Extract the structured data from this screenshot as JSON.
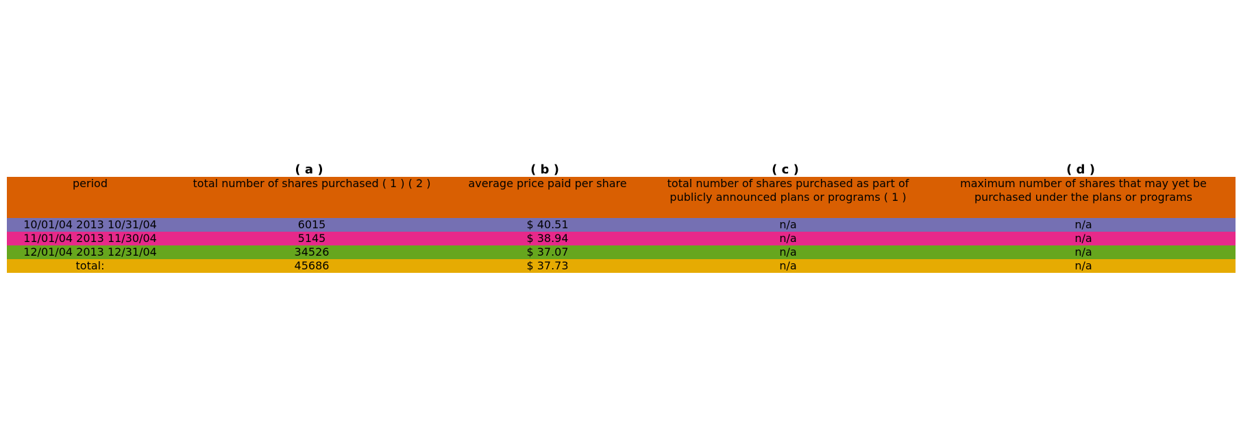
{
  "chart_data": {
    "type": "table",
    "column_letters": [
      "",
      "( a )",
      "( b )",
      "( c )",
      "( d )"
    ],
    "columns": [
      "period",
      "total number of shares purchased ( 1 ) ( 2 )",
      "average price paid per share",
      "total number of shares purchased as part of publicly announced plans or programs ( 1 )",
      "maximum number of shares that may yet be purchased under the plans or programs"
    ],
    "rows": [
      [
        "10/01/04 2013 10/31/04",
        "6015",
        "$ 40.51",
        "n/a",
        "n/a"
      ],
      [
        "11/01/04 2013 11/30/04",
        "5145",
        "$ 38.94",
        "n/a",
        "n/a"
      ],
      [
        "12/01/04 2013 12/31/04",
        "34526",
        "$ 37.07",
        "n/a",
        "n/a"
      ],
      [
        "total:",
        "45686",
        "$ 37.73",
        "n/a",
        "n/a"
      ]
    ],
    "colors": {
      "header": "#d95f02",
      "rows": [
        "#7570b3",
        "#e7298a",
        "#66a61e",
        "#e6ab02"
      ]
    }
  }
}
